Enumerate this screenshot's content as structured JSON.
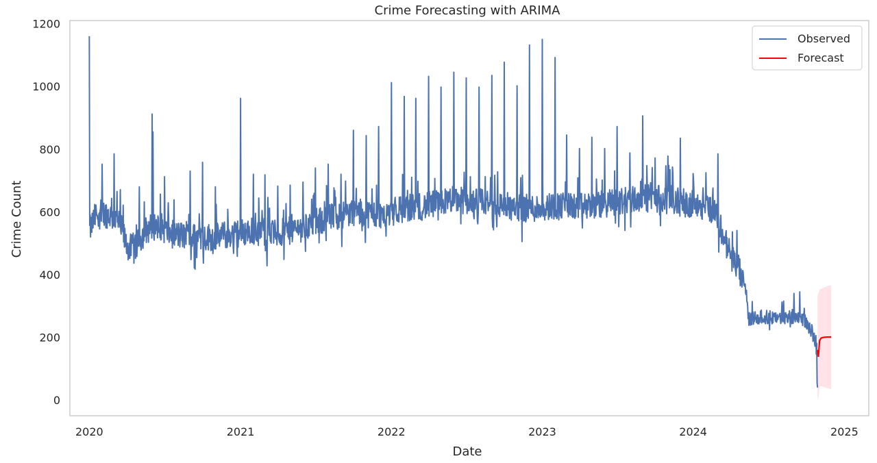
{
  "chart_data": {
    "type": "line",
    "title": "Crime Forecasting with ARIMA",
    "xlabel": "Date",
    "ylabel": "Crime Count",
    "x_ticks": [
      "2020",
      "2021",
      "2022",
      "2023",
      "2024",
      "2025"
    ],
    "y_ticks": [
      "0",
      "200",
      "400",
      "600",
      "800",
      "1000",
      "1200"
    ],
    "xlim": [
      "2019-11-15",
      "2025-03-01"
    ],
    "ylim": [
      -50,
      1210
    ],
    "grid": false,
    "legend_position": "top-right",
    "series": [
      {
        "name": "Observed",
        "color": "#4c72b0",
        "keypoints": [
          [
            "2020-01-01",
            540
          ],
          [
            "2020-01-20",
            600
          ],
          [
            "2020-02-20",
            590
          ],
          [
            "2020-03-15",
            560
          ],
          [
            "2020-04-01",
            490
          ],
          [
            "2020-04-20",
            480
          ],
          [
            "2020-05-15",
            540
          ],
          [
            "2020-06-15",
            560
          ],
          [
            "2020-07-15",
            530
          ],
          [
            "2020-09-01",
            520
          ],
          [
            "2020-11-01",
            520
          ],
          [
            "2020-12-15",
            530
          ],
          [
            "2021-02-01",
            540
          ],
          [
            "2021-04-01",
            530
          ],
          [
            "2021-06-01",
            550
          ],
          [
            "2021-08-01",
            580
          ],
          [
            "2021-10-01",
            600
          ],
          [
            "2021-12-01",
            590
          ],
          [
            "2022-02-01",
            610
          ],
          [
            "2022-04-01",
            620
          ],
          [
            "2022-06-01",
            640
          ],
          [
            "2022-08-01",
            630
          ],
          [
            "2022-10-01",
            620
          ],
          [
            "2022-12-01",
            610
          ],
          [
            "2023-02-01",
            620
          ],
          [
            "2023-04-01",
            615
          ],
          [
            "2023-06-01",
            625
          ],
          [
            "2023-08-01",
            640
          ],
          [
            "2023-10-01",
            645
          ],
          [
            "2023-12-01",
            630
          ],
          [
            "2024-02-01",
            620
          ],
          [
            "2024-02-25",
            600
          ],
          [
            "2024-03-15",
            520
          ],
          [
            "2024-04-01",
            460
          ],
          [
            "2024-04-20",
            420
          ],
          [
            "2024-05-05",
            350
          ],
          [
            "2024-05-15",
            260
          ],
          [
            "2024-06-15",
            265
          ],
          [
            "2024-08-01",
            262
          ],
          [
            "2024-09-15",
            268
          ],
          [
            "2024-10-05",
            240
          ],
          [
            "2024-10-20",
            200
          ],
          [
            "2024-10-26",
            160
          ],
          [
            "2024-10-28",
            40
          ]
        ],
        "spikes": [
          [
            "2020-01-01",
            1160
          ],
          [
            "2020-02-01",
            752
          ],
          [
            "2020-03-01",
            785
          ],
          [
            "2020-05-01",
            680
          ],
          [
            "2020-06-01",
            912
          ],
          [
            "2020-06-03",
            855
          ],
          [
            "2020-07-01",
            712
          ],
          [
            "2020-09-01",
            730
          ],
          [
            "2020-10-01",
            758
          ],
          [
            "2020-11-01",
            680
          ],
          [
            "2021-01-01",
            962
          ],
          [
            "2021-02-01",
            720
          ],
          [
            "2021-03-01",
            718
          ],
          [
            "2021-04-01",
            682
          ],
          [
            "2021-05-01",
            685
          ],
          [
            "2021-06-01",
            695
          ],
          [
            "2021-07-01",
            740
          ],
          [
            "2021-08-01",
            752
          ],
          [
            "2021-09-01",
            720
          ],
          [
            "2021-10-01",
            860
          ],
          [
            "2021-11-01",
            843
          ],
          [
            "2021-12-01",
            872
          ],
          [
            "2022-01-01",
            1012
          ],
          [
            "2022-02-01",
            968
          ],
          [
            "2022-03-01",
            962
          ],
          [
            "2022-04-01",
            1032
          ],
          [
            "2022-05-01",
            998
          ],
          [
            "2022-06-01",
            1045
          ],
          [
            "2022-07-01",
            1027
          ],
          [
            "2022-08-01",
            998
          ],
          [
            "2022-09-01",
            1035
          ],
          [
            "2022-10-01",
            1077
          ],
          [
            "2022-11-01",
            1002
          ],
          [
            "2022-12-01",
            1132
          ],
          [
            "2023-01-01",
            1150
          ],
          [
            "2023-02-01",
            1092
          ],
          [
            "2023-03-01",
            845
          ],
          [
            "2023-04-01",
            802
          ],
          [
            "2023-05-01",
            838
          ],
          [
            "2023-06-01",
            802
          ],
          [
            "2023-07-01",
            872
          ],
          [
            "2023-08-01",
            788
          ],
          [
            "2023-09-01",
            906
          ],
          [
            "2023-10-01",
            772
          ],
          [
            "2023-11-01",
            778
          ],
          [
            "2023-12-01",
            835
          ],
          [
            "2024-01-01",
            722
          ],
          [
            "2024-02-01",
            725
          ],
          [
            "2024-03-01",
            785
          ],
          [
            "2024-09-01",
            340
          ],
          [
            "2024-09-15",
            345
          ]
        ]
      },
      {
        "name": "Forecast",
        "color": "#ff0000",
        "points": [
          [
            "2024-10-28",
            160
          ],
          [
            "2024-10-30",
            138
          ],
          [
            "2024-11-02",
            190
          ],
          [
            "2024-11-06",
            198
          ],
          [
            "2024-11-12",
            200
          ],
          [
            "2024-11-20",
            201
          ],
          [
            "2024-11-30",
            201
          ]
        ],
        "confidence_band": {
          "color": "#ffc0cb",
          "upper": [
            [
              "2024-10-28",
              330
            ],
            [
              "2024-10-30",
              340
            ],
            [
              "2024-11-02",
              352
            ],
            [
              "2024-11-08",
              356
            ],
            [
              "2024-11-15",
              360
            ],
            [
              "2024-11-22",
              364
            ],
            [
              "2024-11-30",
              366
            ]
          ],
          "lower": [
            [
              "2024-10-28",
              0
            ],
            [
              "2024-10-30",
              5
            ],
            [
              "2024-11-02",
              42
            ],
            [
              "2024-11-08",
              44
            ],
            [
              "2024-11-15",
              40
            ],
            [
              "2024-11-22",
              38
            ],
            [
              "2024-11-30",
              34
            ]
          ]
        }
      }
    ]
  }
}
